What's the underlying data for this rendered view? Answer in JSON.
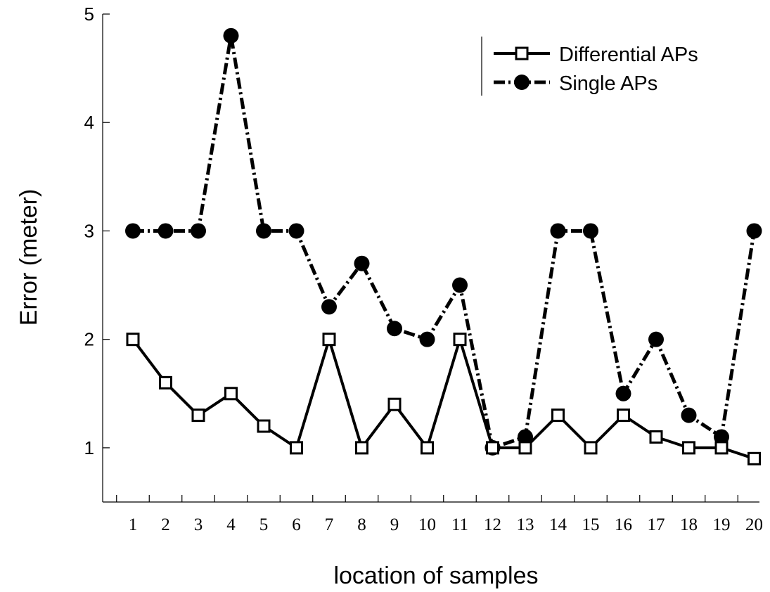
{
  "chart_data": {
    "type": "line",
    "title": "",
    "xlabel": "location of samples",
    "ylabel": "Error (meter)",
    "x": [
      1,
      2,
      3,
      4,
      5,
      6,
      7,
      8,
      9,
      10,
      11,
      12,
      13,
      14,
      15,
      16,
      17,
      18,
      19,
      20
    ],
    "x_tick_labels": [
      "1",
      "2",
      "3",
      "4",
      "5",
      "6",
      "7",
      "8",
      "9",
      "10",
      "11",
      "12",
      "13",
      "14",
      "15",
      "16",
      "17",
      "18",
      "19",
      "20"
    ],
    "y_ticks": [
      1,
      2,
      3,
      4,
      5
    ],
    "y_tick_labels": [
      "1",
      "2",
      "3",
      "4",
      "5"
    ],
    "xlim": [
      0.1,
      20.05
    ],
    "ylim": [
      0.5,
      5.0
    ],
    "grid": false,
    "legend_position": "top-right",
    "series": [
      {
        "name": "Differential APs",
        "style": "solid",
        "marker": "open-square",
        "color": "#000000",
        "values": [
          2.0,
          1.6,
          1.3,
          1.5,
          1.2,
          1.0,
          2.0,
          1.0,
          1.4,
          1.0,
          2.0,
          1.0,
          1.0,
          1.3,
          1.0,
          1.3,
          1.1,
          1.0,
          1.0,
          0.9
        ]
      },
      {
        "name": "Single APs",
        "style": "dash-dot",
        "marker": "filled-circle",
        "color": "#000000",
        "values": [
          3.0,
          3.0,
          3.0,
          4.8,
          3.0,
          3.0,
          2.3,
          2.7,
          2.1,
          2.0,
          2.5,
          1.0,
          1.1,
          3.0,
          3.0,
          1.5,
          2.0,
          1.3,
          1.1,
          3.0
        ]
      }
    ]
  }
}
